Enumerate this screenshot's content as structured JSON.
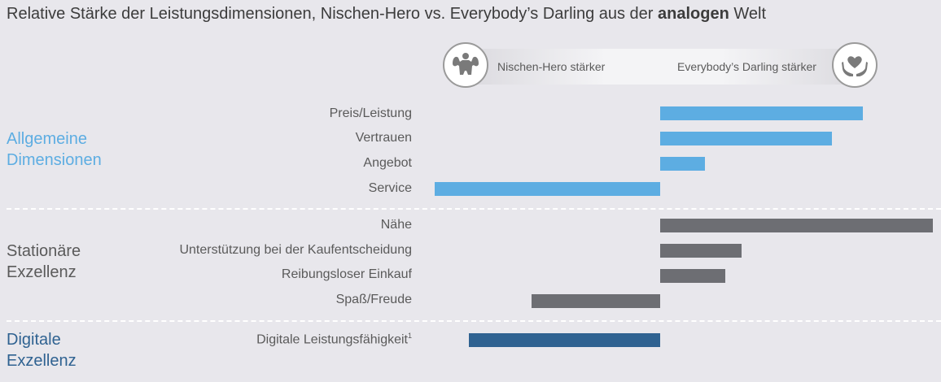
{
  "chart_data": {
    "type": "bar",
    "orientation": "horizontal",
    "title_prefix": "Relative Stärke der Leistungsdimensionen, Nischen-Hero vs. Everybody’s Darling aus der",
    "title_bold": "analogen",
    "title_suffix": "Welt",
    "legend": {
      "left_label": "Nischen-Hero stärker",
      "right_label": "Everybody’s Darling stärker",
      "left_icon": "muscle-man-icon",
      "right_icon": "heart-hands-icon"
    },
    "colors": {
      "allgemeine": "#5dade2",
      "stationaere": "#6d6e73",
      "digitale": "#2f6291"
    },
    "xlim": [
      -100,
      120
    ],
    "groups": [
      {
        "name": "Allgemeine Dimensionen",
        "name_lines": [
          "Allgemeine",
          "Dimensionen"
        ],
        "color_key": "allgemeine",
        "categories": [
          {
            "label": "Preis/Leistung",
            "value": 90
          },
          {
            "label": "Vertrauen",
            "value": 76
          },
          {
            "label": "Angebot",
            "value": 20
          },
          {
            "label": "Service",
            "value": -100
          }
        ]
      },
      {
        "name": "Stationäre Exzellenz",
        "name_lines": [
          "Stationäre",
          "Exzellenz"
        ],
        "color_key": "stationaere",
        "categories": [
          {
            "label": "Nähe",
            "value": 121
          },
          {
            "label": "Unterstützung bei der Kaufentscheidung",
            "value": 36
          },
          {
            "label": "Reibungsloser Einkauf",
            "value": 29
          },
          {
            "label": "Spaß/Freude",
            "value": -57
          }
        ]
      },
      {
        "name": "Digitale Exzellenz",
        "name_lines": [
          "Digitale",
          "Exzellenz"
        ],
        "color_key": "digitale",
        "categories": [
          {
            "label": "Digitale Leistungsfähigkeit",
            "footnote": "1",
            "value": -85
          }
        ]
      }
    ]
  }
}
